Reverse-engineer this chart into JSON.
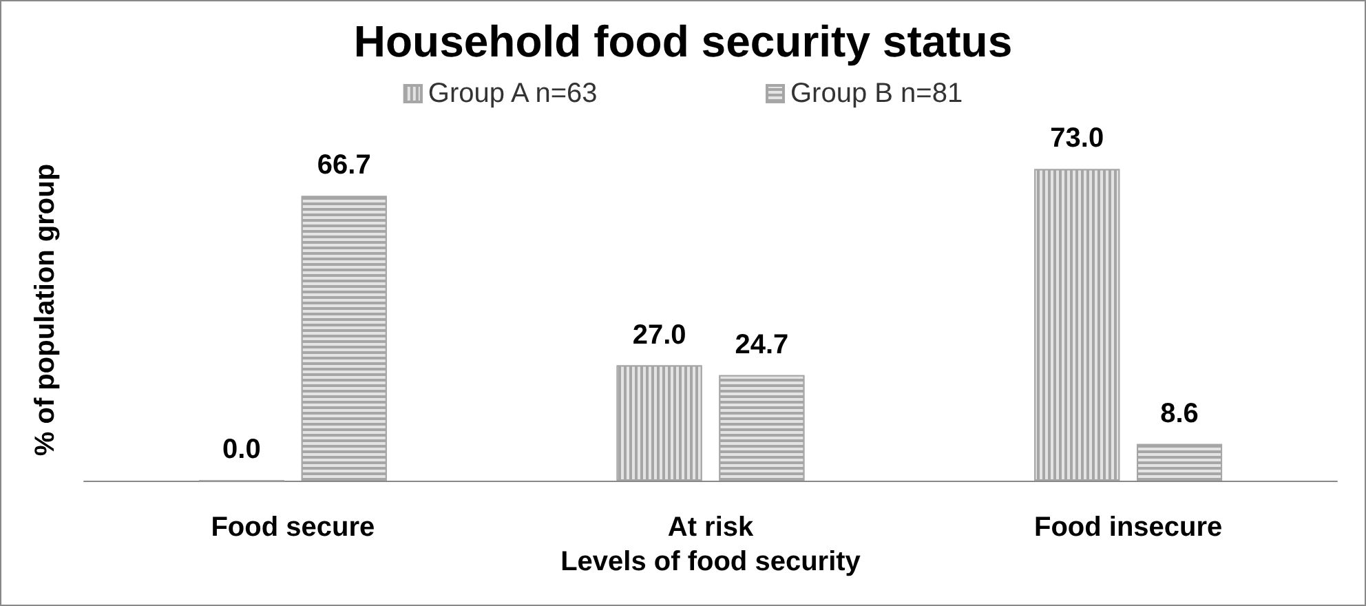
{
  "chart_data": {
    "type": "bar",
    "title": "Household food security status",
    "xlabel": "Levels of food security",
    "ylabel": "% of population group",
    "categories": [
      "Food secure",
      "At risk",
      "Food insecure"
    ],
    "series": [
      {
        "name": "Group A n=63",
        "color": "#a6a6a6",
        "values": [
          0.0,
          27.0,
          73.0
        ],
        "value_labels": [
          "0.0",
          "27.0",
          "73.0"
        ]
      },
      {
        "name": "Group B n=81",
        "color": "#a6a6a6",
        "values": [
          66.7,
          24.7,
          8.6
        ],
        "value_labels": [
          "66.7",
          "24.7",
          "8.6"
        ]
      }
    ],
    "legend": "top",
    "grid": false
  }
}
